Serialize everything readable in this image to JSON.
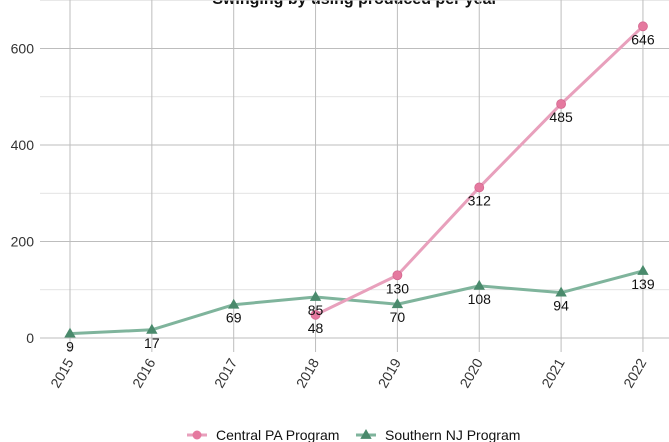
{
  "chart_data": {
    "type": "line",
    "title": "Swinging by using produced per year",
    "xlabel": "",
    "ylabel": "",
    "categories": [
      "2015",
      "2016",
      "2017",
      "2018",
      "2019",
      "2020",
      "2021",
      "2022"
    ],
    "ylim": [
      -30,
      680
    ],
    "yticks": [
      0,
      200,
      400,
      600
    ],
    "grid": true,
    "legend_position": "bottom",
    "series": [
      {
        "name": "Central PA Program",
        "marker": "circle",
        "color": "#e8a0bc",
        "marker_color": "#e5799f",
        "values": [
          null,
          null,
          null,
          48,
          130,
          312,
          485,
          646
        ],
        "labels": [
          "",
          "",
          "",
          "48",
          "130",
          "312",
          "485",
          "646"
        ]
      },
      {
        "name": "Southern NJ Program",
        "marker": "triangle",
        "color": "#7fb49c",
        "marker_color": "#4a8a6c",
        "values": [
          9,
          17,
          69,
          85,
          70,
          108,
          94,
          139
        ],
        "labels": [
          "9",
          "17",
          "69",
          "85",
          "70",
          "108",
          "94",
          "139"
        ]
      }
    ]
  }
}
